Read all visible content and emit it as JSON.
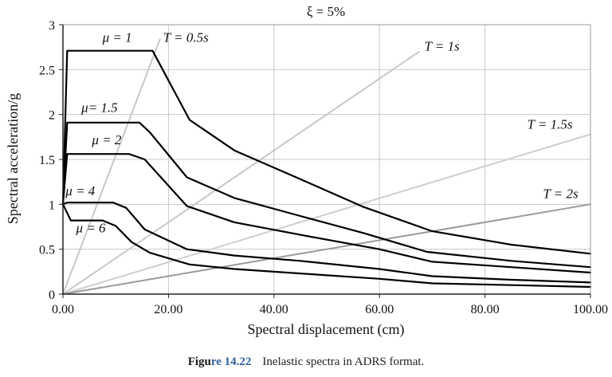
{
  "chart_data": {
    "type": "line",
    "title": "ξ = 5%",
    "xlabel": "Spectral displacement (cm)",
    "ylabel": "Spectral acceleration/g",
    "xlim": [
      0,
      100
    ],
    "ylim": [
      0,
      3
    ],
    "x_ticks": [
      0,
      20,
      40,
      60,
      80,
      100
    ],
    "x_tick_labels": [
      "0.00",
      "20.00",
      "40.00",
      "60.00",
      "80.00",
      "100.00"
    ],
    "y_ticks": [
      0,
      0.5,
      1,
      1.5,
      2,
      2.5,
      3
    ],
    "y_tick_labels": [
      "0",
      "0.5",
      "1",
      "1.5",
      "2",
      "2.5",
      "3"
    ],
    "grid": true,
    "series": [
      {
        "name": "μ = 1",
        "color": "#000000",
        "points": [
          [
            0,
            1
          ],
          [
            0.8,
            2.71
          ],
          [
            17,
            2.71
          ],
          [
            24,
            1.94
          ],
          [
            32.5,
            1.6
          ],
          [
            45,
            1.28
          ],
          [
            57,
            0.97
          ],
          [
            70,
            0.7
          ],
          [
            85,
            0.55
          ],
          [
            100,
            0.45
          ]
        ]
      },
      {
        "name": "μ= 1.5",
        "color": "#000000",
        "points": [
          [
            0,
            1
          ],
          [
            0.8,
            1.91
          ],
          [
            14.5,
            1.91
          ],
          [
            16.5,
            1.8
          ],
          [
            23.5,
            1.3
          ],
          [
            32.5,
            1.07
          ],
          [
            45,
            0.87
          ],
          [
            57,
            0.68
          ],
          [
            69,
            0.47
          ],
          [
            85,
            0.37
          ],
          [
            100,
            0.3
          ]
        ]
      },
      {
        "name": "μ = 2",
        "color": "#000000",
        "points": [
          [
            0,
            1
          ],
          [
            0.8,
            1.56
          ],
          [
            12.5,
            1.56
          ],
          [
            15.5,
            1.5
          ],
          [
            23.5,
            0.98
          ],
          [
            32.5,
            0.8
          ],
          [
            45,
            0.66
          ],
          [
            60,
            0.5
          ],
          [
            70,
            0.36
          ],
          [
            85,
            0.3
          ],
          [
            100,
            0.24
          ]
        ]
      },
      {
        "name": "μ = 4",
        "color": "#000000",
        "points": [
          [
            0,
            1
          ],
          [
            0.8,
            1.02
          ],
          [
            9.5,
            1.02
          ],
          [
            12,
            0.96
          ],
          [
            15.5,
            0.72
          ],
          [
            23.5,
            0.5
          ],
          [
            32.5,
            0.43
          ],
          [
            45,
            0.37
          ],
          [
            60,
            0.28
          ],
          [
            70,
            0.2
          ],
          [
            85,
            0.16
          ],
          [
            100,
            0.13
          ]
        ]
      },
      {
        "name": "μ = 6",
        "color": "#000000",
        "points": [
          [
            0,
            1
          ],
          [
            1.5,
            0.82
          ],
          [
            7.5,
            0.82
          ],
          [
            10,
            0.76
          ],
          [
            13,
            0.58
          ],
          [
            16.5,
            0.46
          ],
          [
            24,
            0.33
          ],
          [
            32.5,
            0.28
          ],
          [
            45,
            0.23
          ],
          [
            60,
            0.17
          ],
          [
            70,
            0.12
          ],
          [
            85,
            0.1
          ],
          [
            100,
            0.08
          ]
        ]
      },
      {
        "name": "T = 0.5s",
        "color": "#c8c8c8",
        "points": [
          [
            0,
            0
          ],
          [
            18.4,
            2.84
          ]
        ]
      },
      {
        "name": "T = 1s",
        "color": "#c8c8c8",
        "points": [
          [
            0,
            0
          ],
          [
            67.5,
            2.7
          ]
        ]
      },
      {
        "name": "T = 1.5s",
        "color": "#cfcfcf",
        "points": [
          [
            0,
            0
          ],
          [
            100,
            1.78
          ]
        ]
      },
      {
        "name": "T = 2s",
        "color": "#9a9a9a",
        "points": [
          [
            0,
            0
          ],
          [
            100,
            1
          ]
        ]
      }
    ],
    "annotations": [
      {
        "text": "μ = 1",
        "x": 7.5,
        "y": 2.81
      },
      {
        "text": "T = 0.5s",
        "x": 19,
        "y": 2.81
      },
      {
        "text": "T = 1s",
        "x": 68.5,
        "y": 2.71
      },
      {
        "text": "μ= 1.5",
        "x": 3.5,
        "y": 2.03
      },
      {
        "text": "T = 1.5s",
        "x": 88,
        "y": 1.84
      },
      {
        "text": "μ = 2",
        "x": 5.5,
        "y": 1.67
      },
      {
        "text": "μ = 4",
        "x": 0.5,
        "y": 1.1
      },
      {
        "text": "T = 2s",
        "x": 91,
        "y": 1.07
      },
      {
        "text": "μ = 6",
        "x": 2.5,
        "y": 0.69
      }
    ]
  },
  "caption": {
    "label_prefix": "Figu",
    "label_suffix": "re 14.22",
    "text": "Inelastic spectra in ADRS format."
  }
}
